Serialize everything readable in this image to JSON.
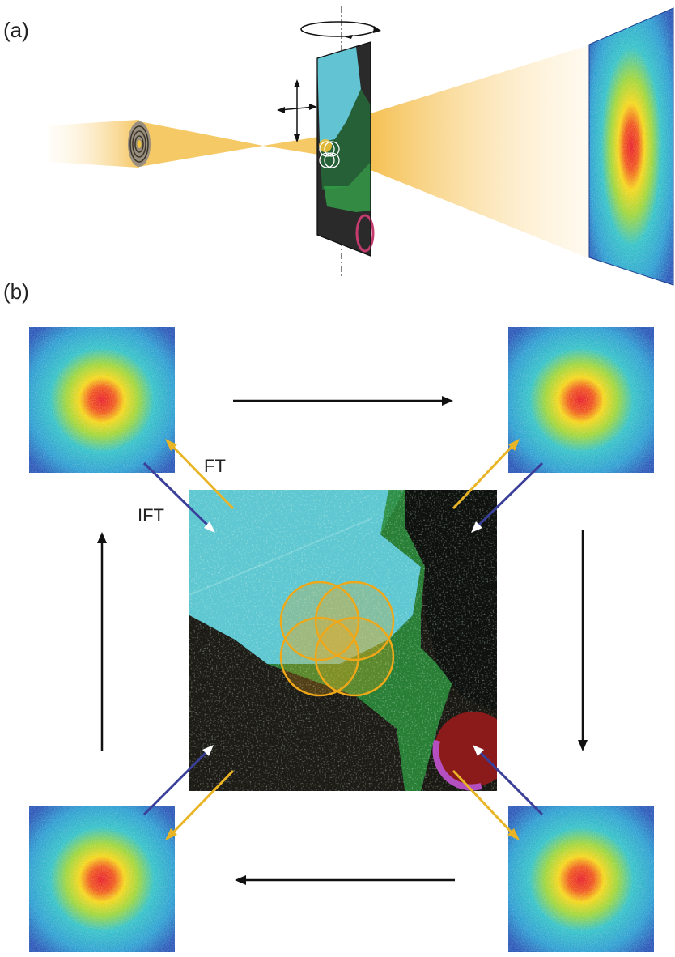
{
  "panels": {
    "a": "(a)",
    "b": "(b)"
  },
  "labels": {
    "ft": "FT",
    "ift": "IFT"
  },
  "colors": {
    "beam": "#f3b731",
    "ft_arrow": "#e9b425",
    "ift_arrow": "#3a3f9a",
    "probe_circle": "#f0a818",
    "cycle_arrow": "#111111",
    "pattern_center": "#e8202a",
    "pattern_edge": "#2a57b8"
  },
  "icons": {
    "rotation": "rotation-arrow-icon",
    "translation": "translation-cross-icon",
    "aperture": "zone-plate-icon"
  }
}
